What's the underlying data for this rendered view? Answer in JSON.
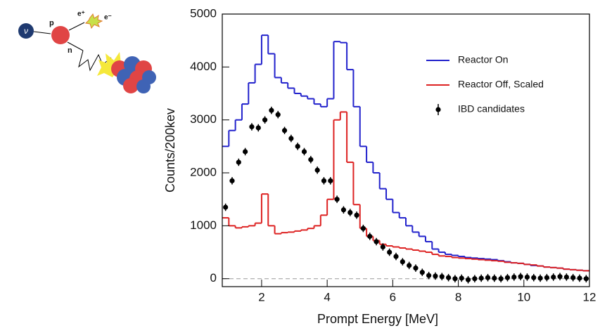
{
  "diagram": {
    "labels": {
      "nu": "ν",
      "p": "p",
      "e_plus": "e⁺",
      "e_minus": "e⁻",
      "n": "n"
    }
  },
  "chart_data": {
    "type": "histogram",
    "x_label": "Prompt Energy [MeV]",
    "y_label": "Counts/200kev",
    "bins": [
      0.8,
      1.0,
      1.2,
      1.4,
      1.6,
      1.8,
      2.0,
      2.2,
      2.4,
      2.6,
      2.8,
      3.0,
      3.2,
      3.4,
      3.6,
      3.8,
      4.0,
      4.2,
      4.4,
      4.6,
      4.8,
      5.0,
      5.2,
      5.4,
      5.6,
      5.8,
      6.0,
      6.2,
      6.4,
      6.6,
      6.8,
      7.0,
      7.2,
      7.4,
      7.6,
      7.8,
      8.0,
      8.2,
      8.4,
      8.6,
      8.8,
      9.0,
      9.2,
      9.4,
      9.6,
      9.8,
      10.0,
      10.2,
      10.4,
      10.6,
      10.8,
      11.0,
      11.2,
      11.4,
      11.6,
      11.8,
      12.0
    ],
    "series": [
      {
        "name": "Reactor On",
        "color": "#2222cc",
        "style": "step",
        "values": [
          2500,
          2800,
          3000,
          3300,
          3700,
          4050,
          4600,
          4250,
          3800,
          3700,
          3600,
          3500,
          3450,
          3400,
          3300,
          3250,
          3400,
          4480,
          4460,
          3950,
          3250,
          2500,
          2200,
          2000,
          1700,
          1500,
          1250,
          1150,
          1000,
          880,
          800,
          700,
          560,
          500,
          460,
          440,
          420,
          400,
          390,
          380,
          370,
          360,
          340,
          320,
          300,
          290,
          270,
          250,
          240,
          220,
          210,
          200,
          180,
          170,
          160,
          150
        ]
      },
      {
        "name": "Reactor Off, Scaled",
        "color": "#dd2222",
        "style": "step",
        "values": [
          1150,
          1000,
          960,
          980,
          1000,
          1050,
          1600,
          1000,
          850,
          870,
          880,
          900,
          920,
          950,
          1000,
          1200,
          1500,
          3000,
          3150,
          2200,
          1400,
          950,
          800,
          720,
          650,
          620,
          600,
          580,
          560,
          540,
          520,
          500,
          460,
          430,
          420,
          400,
          390,
          380,
          370,
          360,
          350,
          340,
          330,
          310,
          300,
          290,
          270,
          260,
          240,
          220,
          210,
          200,
          180,
          170,
          160,
          150
        ]
      },
      {
        "name": "IBD candidates",
        "color": "#000000",
        "style": "points",
        "values": [
          1350,
          1850,
          2200,
          2400,
          2870,
          2850,
          3000,
          3180,
          3100,
          2800,
          2650,
          2500,
          2400,
          2250,
          2050,
          1850,
          1850,
          1500,
          1300,
          1250,
          1200,
          950,
          800,
          700,
          600,
          500,
          420,
          320,
          250,
          200,
          120,
          60,
          50,
          40,
          20,
          0,
          10,
          -20,
          0,
          10,
          20,
          10,
          0,
          20,
          30,
          40,
          30,
          20,
          10,
          20,
          30,
          40,
          30,
          20,
          10,
          0
        ],
        "errors": [
          70,
          70,
          70,
          70,
          70,
          70,
          70,
          70,
          70,
          70,
          70,
          70,
          70,
          70,
          70,
          70,
          70,
          70,
          70,
          70,
          70,
          70,
          70,
          70,
          70,
          70,
          70,
          70,
          70,
          70,
          70,
          70,
          70,
          70,
          70,
          70,
          70,
          70,
          70,
          70,
          70,
          70,
          70,
          70,
          70,
          70,
          70,
          70,
          70,
          70,
          70,
          70,
          70,
          70,
          70,
          70
        ]
      }
    ],
    "xlim": [
      0.8,
      12
    ],
    "ylim": [
      -150,
      5000
    ],
    "xticks": [
      2,
      4,
      6,
      8,
      10,
      12
    ],
    "yticks": [
      0,
      1000,
      2000,
      3000,
      4000,
      5000
    ],
    "legend": "upper right"
  }
}
